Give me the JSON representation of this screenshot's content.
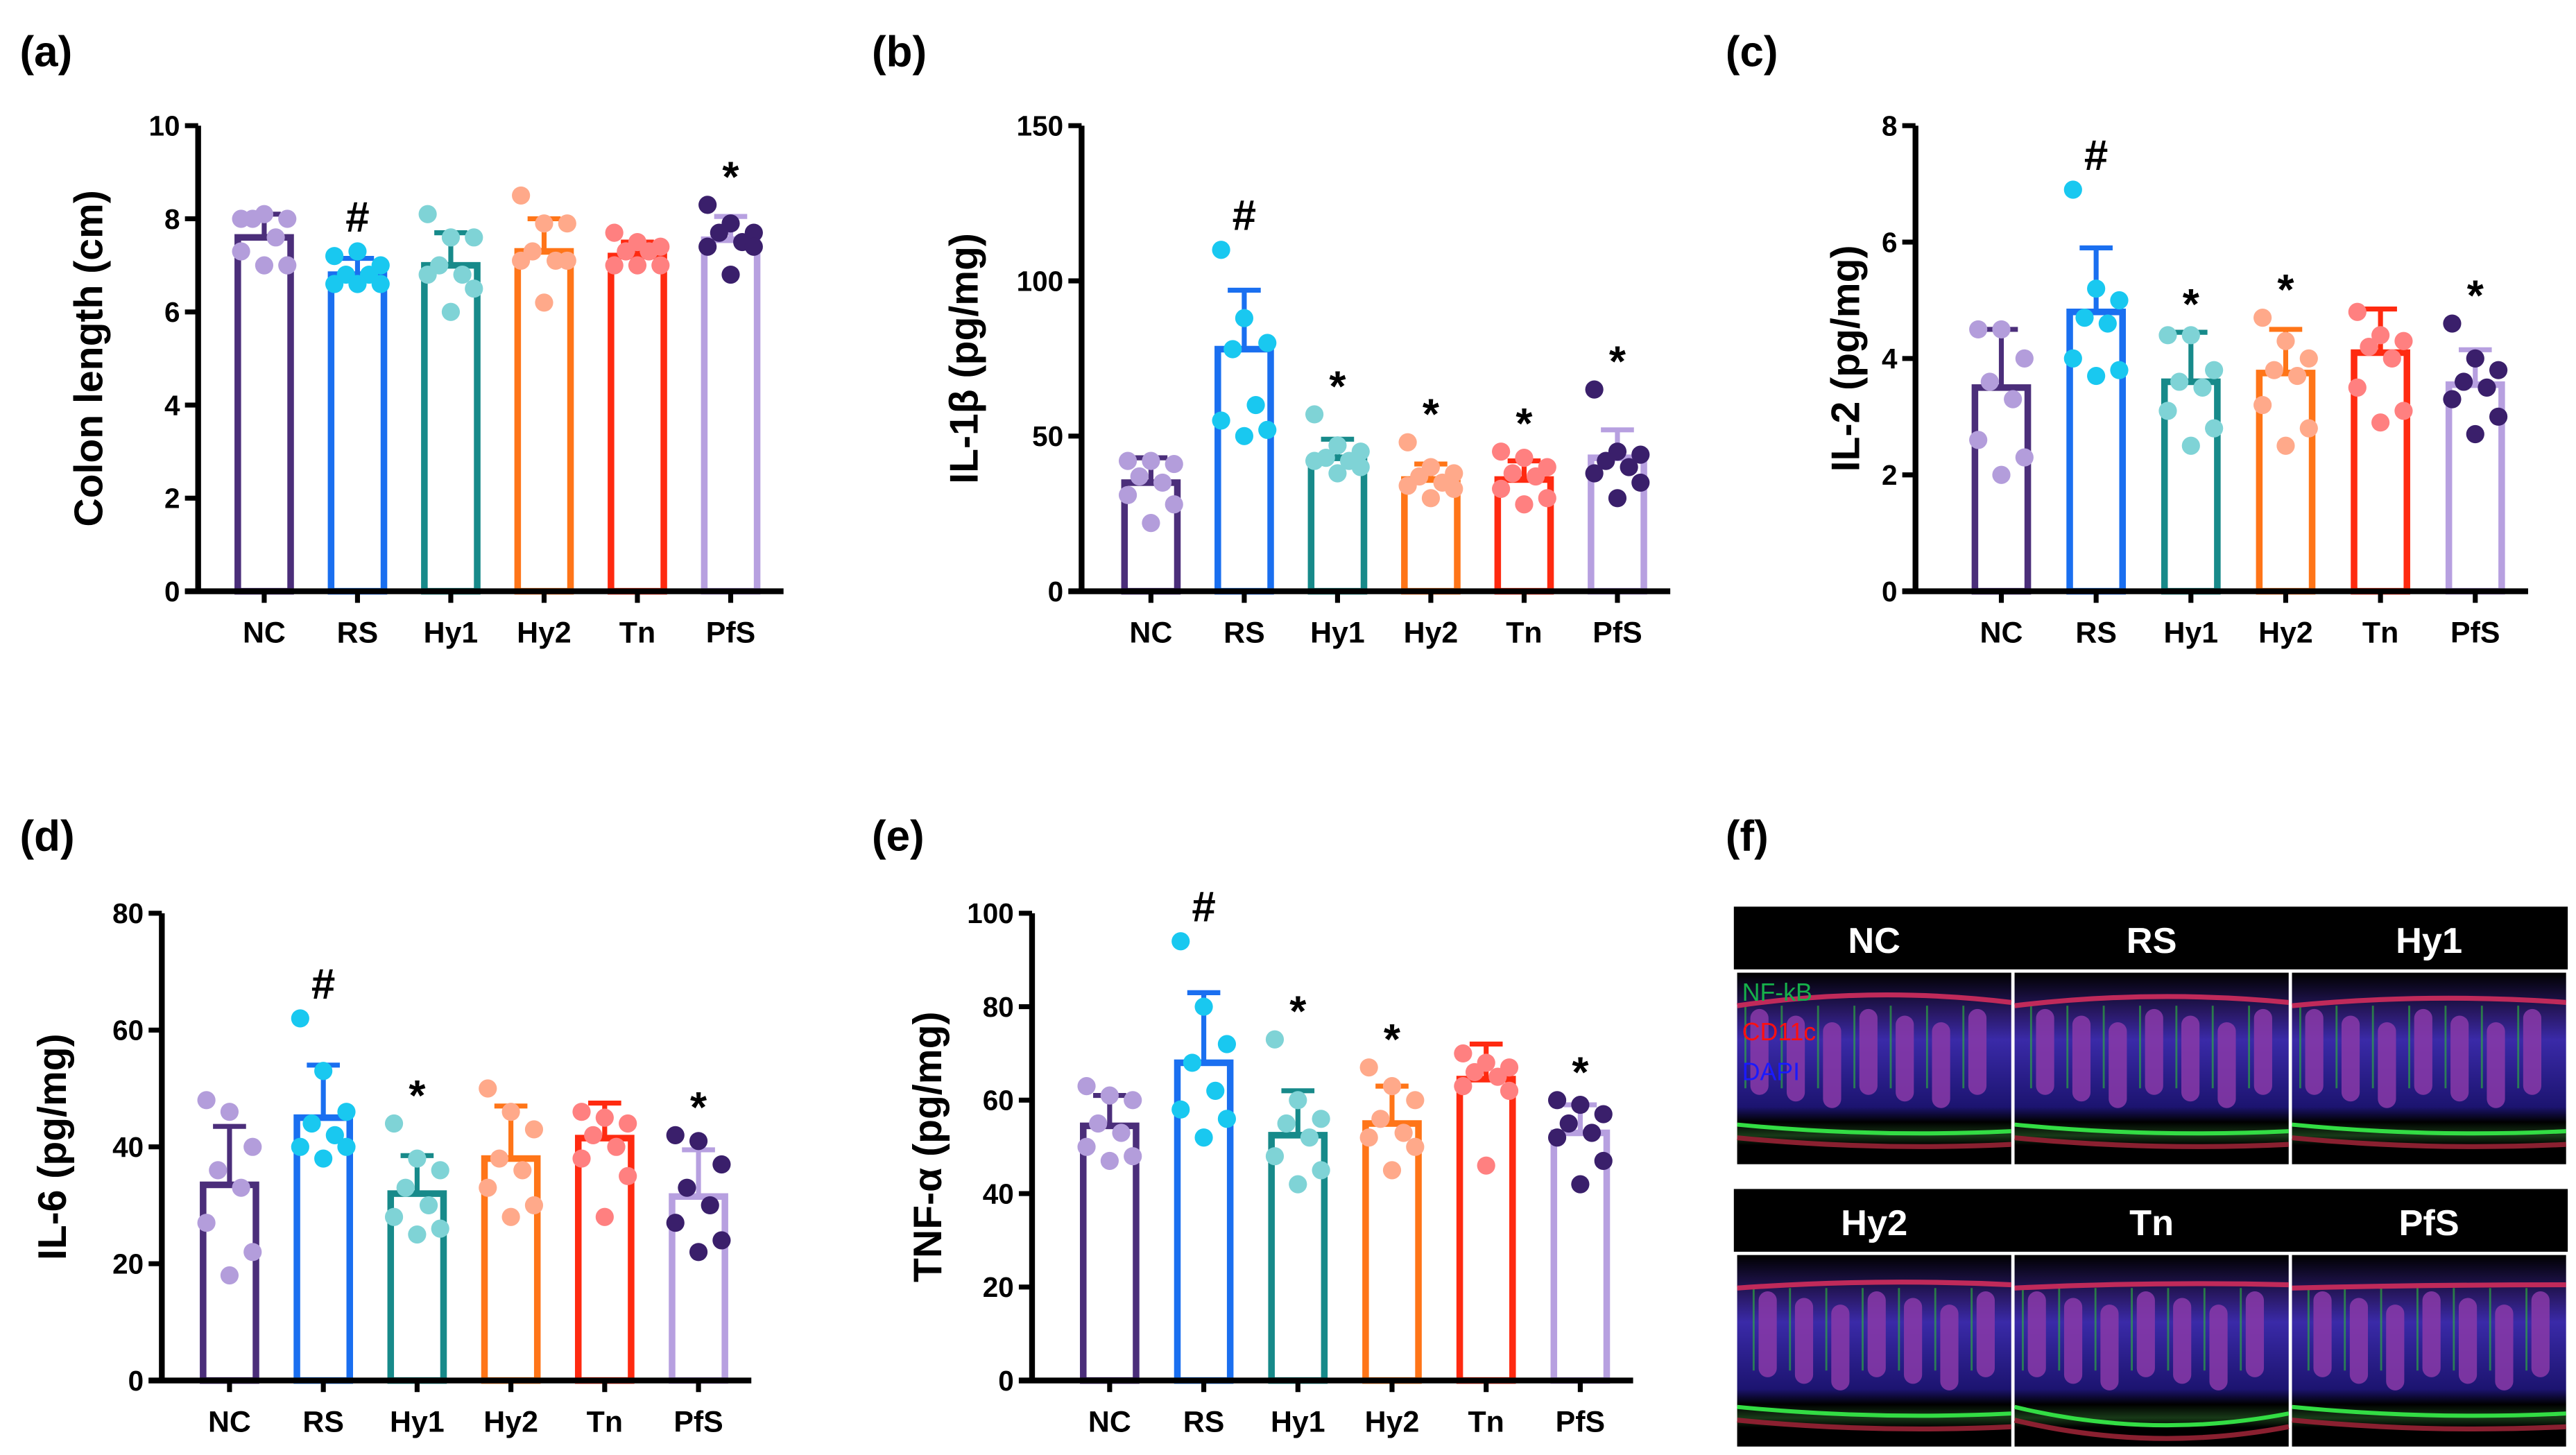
{
  "panel_f": {
    "label": "(f)",
    "headers": [
      "NC",
      "RS",
      "Hy1",
      "Hy2",
      "Tn",
      "PfS"
    ],
    "legend": [
      {
        "text": "NF-kB",
        "color": "#16b04a"
      },
      {
        "text": "CD11c",
        "color": "#ff1010"
      },
      {
        "text": "DAPI",
        "color": "#1a1aff"
      }
    ]
  },
  "groups": [
    "NC",
    "RS",
    "Hy1",
    "Hy2",
    "Tn",
    "PfS"
  ],
  "colors": {
    "edge": [
      "#4b2e7a",
      "#1a6ff0",
      "#178a8a",
      "#ff7518",
      "#ff2a10",
      "#b7a0e0"
    ],
    "points": [
      "#b39ddb",
      "#19c8f0",
      "#7fd3d6",
      "#ffa98a",
      "#ff8080",
      "#3a1f6b"
    ]
  },
  "chart_data": [
    {
      "type": "bar",
      "label": "(a)",
      "ylabel": "Colon length (cm)",
      "ylim": [
        0,
        10
      ],
      "yticks": [
        0,
        2,
        4,
        6,
        8,
        10
      ],
      "categories": [
        "NC",
        "RS",
        "Hy1",
        "Hy2",
        "Tn",
        "PfS"
      ],
      "means": [
        7.6,
        6.8,
        7.0,
        7.3,
        7.2,
        7.55
      ],
      "sd": [
        0.5,
        0.35,
        0.7,
        0.7,
        0.3,
        0.5
      ],
      "points": [
        [
          8.0,
          8.1,
          8.0,
          8.0,
          7.6,
          7.3,
          7.0,
          7.0
        ],
        [
          7.2,
          7.3,
          7.0,
          6.8,
          6.8,
          6.6,
          6.6,
          6.6
        ],
        [
          8.1,
          7.6,
          7.6,
          7.0,
          6.8,
          6.8,
          6.5,
          6.0
        ],
        [
          8.5,
          7.9,
          7.9,
          7.3,
          7.1,
          7.1,
          7.1,
          6.2
        ],
        [
          7.7,
          7.5,
          7.4,
          7.3,
          7.3,
          7.0,
          7.0,
          7.0
        ],
        [
          8.3,
          7.9,
          7.7,
          7.7,
          7.5,
          7.4,
          7.4,
          6.8
        ]
      ],
      "significance": [
        "",
        "#",
        "",
        "",
        "",
        "*"
      ]
    },
    {
      "type": "bar",
      "label": "(b)",
      "ylabel": "IL-1β (pg/mg)",
      "ylim": [
        0,
        150
      ],
      "yticks": [
        0,
        50,
        100,
        150
      ],
      "categories": [
        "NC",
        "RS",
        "Hy1",
        "Hy2",
        "Tn",
        "PfS"
      ],
      "means": [
        35,
        78,
        43,
        36,
        36,
        43
      ],
      "sd": [
        8,
        19,
        6,
        5,
        6,
        9
      ],
      "points": [
        [
          42,
          42,
          41,
          37,
          35,
          31,
          28,
          22
        ],
        [
          110,
          88,
          80,
          78,
          60,
          55,
          52,
          50
        ],
        [
          57,
          47,
          45,
          43,
          42,
          42,
          40,
          38
        ],
        [
          48,
          40,
          38,
          37,
          35,
          34,
          33,
          30
        ],
        [
          45,
          43,
          40,
          38,
          37,
          33,
          30,
          28
        ],
        [
          65,
          45,
          44,
          42,
          40,
          38,
          35,
          30
        ]
      ],
      "significance": [
        "",
        "#",
        "*",
        "*",
        "*",
        "*"
      ]
    },
    {
      "type": "bar",
      "label": "(c)",
      "ylabel": "IL-2 (pg/mg)",
      "ylim": [
        0,
        8
      ],
      "yticks": [
        0,
        2,
        4,
        6,
        8
      ],
      "categories": [
        "NC",
        "RS",
        "Hy1",
        "Hy2",
        "Tn",
        "PfS"
      ],
      "means": [
        3.5,
        4.8,
        3.6,
        3.75,
        4.1,
        3.55
      ],
      "sd": [
        1.0,
        1.1,
        0.85,
        0.75,
        0.75,
        0.6
      ],
      "points": [
        [
          4.5,
          4.5,
          4.0,
          3.6,
          3.3,
          2.6,
          2.3,
          2.0
        ],
        [
          6.9,
          5.2,
          5.0,
          4.7,
          4.6,
          4.0,
          3.8,
          3.7
        ],
        [
          4.4,
          4.4,
          3.8,
          3.6,
          3.5,
          3.1,
          2.8,
          2.5
        ],
        [
          4.7,
          4.3,
          4.0,
          3.8,
          3.7,
          3.2,
          2.8,
          2.5
        ],
        [
          4.8,
          4.4,
          4.3,
          4.2,
          4.0,
          3.5,
          3.1,
          2.9
        ],
        [
          4.6,
          4.0,
          3.8,
          3.6,
          3.5,
          3.3,
          3.0,
          2.7
        ]
      ],
      "significance": [
        "",
        "#",
        "*",
        "*",
        "",
        "*"
      ]
    },
    {
      "type": "bar",
      "label": "(d)",
      "ylabel": "IL-6 (pg/mg)",
      "ylim": [
        0,
        80
      ],
      "yticks": [
        0,
        20,
        40,
        60,
        80
      ],
      "categories": [
        "NC",
        "RS",
        "Hy1",
        "Hy2",
        "Tn",
        "PfS"
      ],
      "means": [
        33.5,
        45,
        32,
        38,
        41.5,
        31.5
      ],
      "sd": [
        10,
        9,
        6.5,
        9,
        6,
        8
      ],
      "points": [
        [
          48,
          46,
          40,
          36,
          33,
          27,
          22,
          18
        ],
        [
          62,
          53,
          46,
          44,
          42,
          40,
          40,
          38
        ],
        [
          44,
          38,
          36,
          33,
          30,
          28,
          26,
          25
        ],
        [
          50,
          46,
          43,
          38,
          36,
          33,
          30,
          28
        ],
        [
          46,
          45,
          44,
          42,
          40,
          38,
          35,
          28
        ],
        [
          42,
          41,
          37,
          33,
          30,
          27,
          24,
          22
        ]
      ],
      "significance": [
        "",
        "#",
        "*",
        "",
        "",
        "*"
      ]
    },
    {
      "type": "bar",
      "label": "(e)",
      "ylabel": "TNF-α (pg/mg)",
      "ylim": [
        0,
        100
      ],
      "yticks": [
        0,
        20,
        40,
        60,
        80,
        100
      ],
      "categories": [
        "NC",
        "RS",
        "Hy1",
        "Hy2",
        "Tn",
        "PfS"
      ],
      "means": [
        54.5,
        68,
        52.5,
        55,
        64.5,
        53
      ],
      "sd": [
        6.5,
        15,
        9.5,
        8,
        7.5,
        6
      ],
      "points": [
        [
          63,
          61,
          60,
          55,
          53,
          50,
          48,
          47
        ],
        [
          94,
          80,
          72,
          68,
          62,
          58,
          56,
          52
        ],
        [
          73,
          60,
          56,
          55,
          52,
          48,
          45,
          42
        ],
        [
          67,
          63,
          60,
          56,
          53,
          52,
          50,
          45
        ],
        [
          70,
          68,
          67,
          66,
          65,
          63,
          62,
          46
        ],
        [
          60,
          59,
          57,
          55,
          53,
          52,
          47,
          42
        ]
      ],
      "significance": [
        "",
        "#",
        "*",
        "*",
        "",
        "*"
      ]
    }
  ]
}
